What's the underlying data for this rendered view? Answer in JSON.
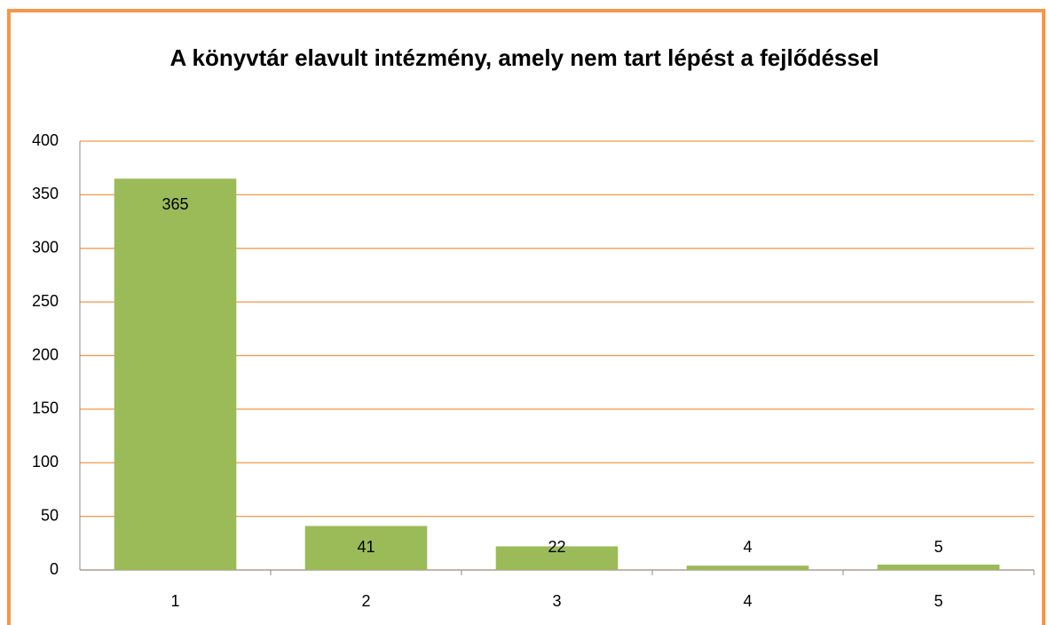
{
  "chart_data": {
    "type": "bar",
    "title": "A könyvtár elavult intézmény, amely nem tart lépést a fejlődéssel",
    "categories": [
      "1",
      "2",
      "3",
      "4",
      "5"
    ],
    "values": [
      365,
      41,
      22,
      4,
      5
    ],
    "color": "#9bbb59",
    "ylim": [
      0,
      400
    ],
    "yticks": [
      0,
      50,
      100,
      150,
      200,
      250,
      300,
      350,
      400
    ],
    "grid": true,
    "grid_color": "#f79646"
  }
}
